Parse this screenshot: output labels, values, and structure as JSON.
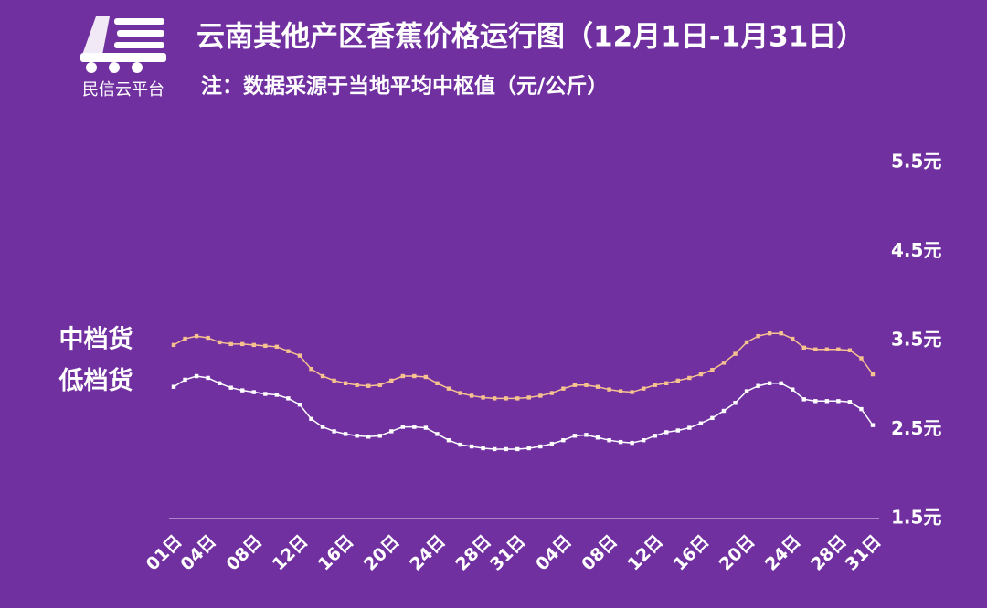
{
  "brand": "民信云平台",
  "chart_data": {
    "type": "line",
    "title": "云南其他产区香蕉价格运行图（12月1日-1月31日）",
    "subtitle": "注：数据采源于当地平均中枢值（元/公斤）",
    "categories": [
      "01日",
      null,
      null,
      "04日",
      null,
      null,
      null,
      "08日",
      null,
      null,
      null,
      "12日",
      null,
      null,
      null,
      "16日",
      null,
      null,
      null,
      "20日",
      null,
      null,
      null,
      "24日",
      null,
      null,
      null,
      "28日",
      null,
      null,
      "31日",
      null,
      null,
      null,
      "04日",
      null,
      null,
      null,
      "08日",
      null,
      null,
      null,
      "12日",
      null,
      null,
      null,
      "16日",
      null,
      null,
      null,
      "20日",
      null,
      null,
      null,
      "24日",
      null,
      null,
      null,
      "28日",
      null,
      null,
      "31日"
    ],
    "series": [
      {
        "name": "中档货",
        "color": "#f6c28f",
        "values": [
          3.45,
          3.52,
          3.55,
          3.53,
          3.48,
          3.46,
          3.46,
          3.45,
          3.44,
          3.43,
          3.38,
          3.33,
          3.18,
          3.1,
          3.05,
          3.02,
          3.0,
          2.99,
          3.0,
          3.05,
          3.1,
          3.1,
          3.09,
          3.02,
          2.96,
          2.91,
          2.88,
          2.86,
          2.85,
          2.85,
          2.85,
          2.86,
          2.88,
          2.91,
          2.96,
          3.0,
          3.0,
          2.98,
          2.95,
          2.93,
          2.92,
          2.96,
          3.0,
          3.02,
          3.05,
          3.08,
          3.12,
          3.17,
          3.25,
          3.35,
          3.48,
          3.55,
          3.58,
          3.58,
          3.52,
          3.42,
          3.4,
          3.4,
          3.4,
          3.39,
          3.3,
          3.12
        ]
      },
      {
        "name": "低档货",
        "color": "#ffffff",
        "values": [
          2.98,
          3.06,
          3.1,
          3.08,
          3.02,
          2.97,
          2.94,
          2.92,
          2.9,
          2.89,
          2.85,
          2.78,
          2.62,
          2.53,
          2.48,
          2.45,
          2.43,
          2.42,
          2.43,
          2.48,
          2.53,
          2.53,
          2.52,
          2.45,
          2.38,
          2.33,
          2.31,
          2.29,
          2.28,
          2.28,
          2.28,
          2.29,
          2.31,
          2.34,
          2.38,
          2.43,
          2.44,
          2.41,
          2.38,
          2.36,
          2.35,
          2.38,
          2.43,
          2.47,
          2.49,
          2.52,
          2.57,
          2.63,
          2.71,
          2.8,
          2.93,
          2.99,
          3.02,
          3.02,
          2.95,
          2.84,
          2.82,
          2.82,
          2.82,
          2.81,
          2.73,
          2.55
        ]
      }
    ],
    "ylim": [
      1.5,
      5.5
    ],
    "yticks": [
      {
        "value": 1.5,
        "label": "1.5元"
      },
      {
        "value": 2.5,
        "label": "2.5元"
      },
      {
        "value": 3.5,
        "label": "3.5元"
      },
      {
        "value": 4.5,
        "label": "4.5元"
      },
      {
        "value": 5.5,
        "label": "5.5元"
      }
    ],
    "grid": false
  }
}
